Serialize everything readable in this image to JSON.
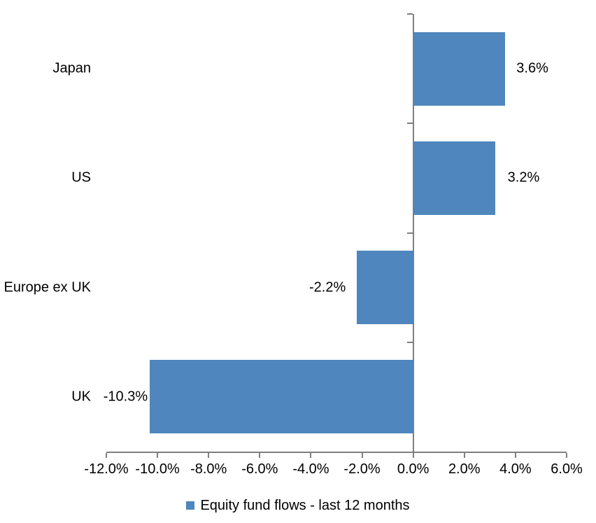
{
  "chart_data": {
    "type": "bar",
    "orientation": "horizontal",
    "categories": [
      "Japan",
      "US",
      "Europe ex UK",
      "UK"
    ],
    "values": [
      3.6,
      3.2,
      -2.2,
      -10.3
    ],
    "value_labels": [
      "3.6%",
      "3.2%",
      "-2.2%",
      "-10.3%"
    ],
    "series_name": "Equity fund flows - last 12 months",
    "title": "",
    "xlabel": "",
    "ylabel": "",
    "xlim": [
      -12,
      6
    ],
    "x_tick_step": 2,
    "x_tick_labels": [
      "-12.0%",
      "-10.0%",
      "-8.0%",
      "-6.0%",
      "-4.0%",
      "-2.0%",
      "0.0%",
      "2.0%",
      "4.0%",
      "6.0%"
    ],
    "grid": false,
    "legend_position": "bottom",
    "bar_color": "#4E86BD",
    "axis_color": "#7F7F7F",
    "text_color": "#000000"
  },
  "legend": {
    "label": "Equity fund flows - last 12 months"
  }
}
